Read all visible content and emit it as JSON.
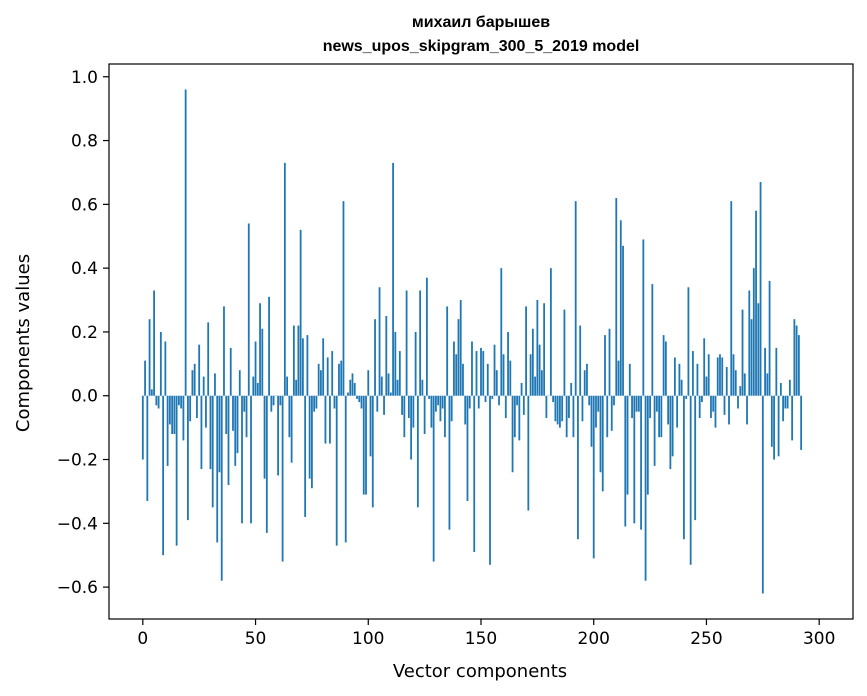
{
  "chart_data": {
    "type": "bar",
    "title_line1": "михаил барышев",
    "title_line2": "news_upos_skipgram_300_5_2019 model",
    "xlabel": "Vector components",
    "ylabel": "Components values",
    "xlim": [
      -15,
      315
    ],
    "ylim": [
      -0.7,
      1.04
    ],
    "xticks": [
      0,
      50,
      100,
      150,
      200,
      250,
      300
    ],
    "xtick_labels": [
      "0",
      "50",
      "100",
      "150",
      "200",
      "250",
      "300"
    ],
    "yticks": [
      -0.6,
      -0.4,
      -0.2,
      0.0,
      0.2,
      0.4,
      0.6,
      0.8,
      1.0
    ],
    "ytick_labels": [
      "−0.6",
      "−0.4",
      "−0.2",
      "0.0",
      "0.2",
      "0.4",
      "0.6",
      "0.8",
      "1.0"
    ],
    "bar_color": "#1f77b4",
    "x_start": 0,
    "values": [
      -0.2,
      0.11,
      -0.33,
      0.24,
      0.02,
      0.33,
      -0.03,
      -0.04,
      0.2,
      -0.5,
      0.17,
      -0.22,
      -0.09,
      -0.12,
      -0.12,
      -0.47,
      -0.03,
      -0.04,
      -0.14,
      0.96,
      -0.39,
      -0.08,
      0.08,
      0.1,
      -0.07,
      0.16,
      -0.23,
      0.06,
      -0.1,
      0.23,
      -0.23,
      -0.35,
      0.07,
      -0.46,
      -0.24,
      -0.58,
      0.28,
      -0.12,
      -0.28,
      0.15,
      -0.11,
      -0.22,
      -0.18,
      0.08,
      -0.4,
      -0.05,
      -0.13,
      0.54,
      -0.4,
      0.06,
      0.17,
      0.04,
      0.29,
      0.21,
      -0.26,
      -0.43,
      0.31,
      -0.05,
      -0.03,
      0.0,
      -0.25,
      -0.03,
      -0.52,
      0.73,
      0.06,
      -0.13,
      -0.21,
      0.22,
      0.05,
      0.22,
      0.52,
      0.18,
      -0.38,
      0.19,
      -0.26,
      -0.29,
      -0.05,
      -0.04,
      0.1,
      0.08,
      0.18,
      -0.15,
      0.12,
      -0.15,
      0.14,
      -0.04,
      -0.47,
      0.1,
      0.11,
      0.61,
      -0.46,
      0.01,
      0.05,
      0.07,
      0.04,
      -0.01,
      -0.02,
      -0.04,
      -0.31,
      -0.31,
      0.08,
      -0.19,
      -0.35,
      0.24,
      -0.05,
      0.34,
      0.06,
      -0.06,
      0.25,
      0.07,
      0.01,
      0.73,
      0.2,
      0.05,
      0.14,
      -0.06,
      -0.13,
      0.33,
      -0.07,
      -0.2,
      -0.1,
      0.2,
      -0.35,
      0.33,
      0.05,
      -0.12,
      0.37,
      -0.01,
      -0.1,
      -0.52,
      -0.05,
      -0.03,
      -0.08,
      -0.04,
      -0.13,
      0.28,
      -0.42,
      -0.08,
      0.17,
      0.13,
      0.24,
      0.3,
      0.1,
      -0.09,
      -0.33,
      -0.04,
      0.17,
      -0.49,
      0.14,
      -0.04,
      0.15,
      0.14,
      -0.02,
      0.1,
      -0.53,
      -0.01,
      0.16,
      0.08,
      -0.03,
      0.4,
      0.13,
      -0.07,
      0.2,
      0.11,
      -0.24,
      -0.13,
      -0.03,
      -0.14,
      0.04,
      -0.06,
      0.28,
      -0.36,
      0.13,
      0.21,
      0.06,
      0.3,
      0.16,
      0.08,
      0.29,
      -0.07,
      0.0,
      0.4,
      -0.02,
      -0.08,
      -0.09,
      -0.1,
      -0.08,
      0.27,
      -0.13,
      -0.07,
      0.04,
      -0.13,
      0.61,
      -0.45,
      0.22,
      -0.08,
      0.08,
      0.1,
      -0.03,
      -0.16,
      -0.51,
      -0.1,
      -0.05,
      -0.24,
      -0.3,
      0.19,
      -0.13,
      0.21,
      -0.11,
      -0.03,
      0.62,
      0.11,
      0.55,
      0.47,
      -0.41,
      -0.31,
      0.1,
      -0.07,
      -0.4,
      -0.05,
      -0.05,
      -0.42,
      0.49,
      -0.58,
      -0.31,
      -0.07,
      0.35,
      -0.22,
      -0.05,
      -0.13,
      -0.13,
      0.19,
      0.17,
      -0.09,
      -0.23,
      -0.19,
      0.12,
      -0.1,
      0.1,
      0.05,
      -0.45,
      -0.01,
      0.34,
      -0.53,
      0.14,
      -0.39,
      0.1,
      -0.07,
      -0.02,
      0.18,
      0.06,
      0.13,
      -0.07,
      -0.05,
      -0.1,
      0.12,
      0.13,
      0.12,
      -0.06,
      0.09,
      -0.09,
      0.61,
      0.13,
      0.08,
      -0.04,
      0.03,
      0.27,
      0.07,
      -0.09,
      0.33,
      0.24,
      0.4,
      0.58,
      0.29,
      0.67,
      -0.62,
      0.15,
      0.07,
      0.36,
      -0.16,
      -0.2,
      0.15,
      -0.19,
      0.04,
      -0.08,
      -0.04,
      -0.04,
      0.05,
      -0.14,
      0.24,
      0.22,
      0.19,
      -0.17
    ]
  }
}
